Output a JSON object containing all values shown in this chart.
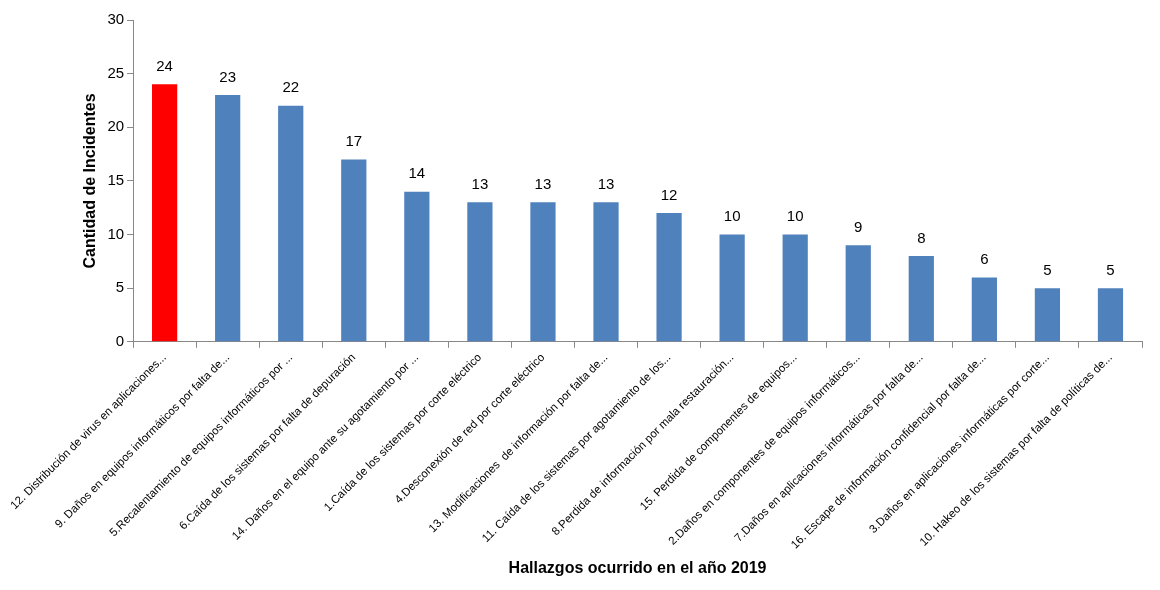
{
  "chart_data": {
    "type": "bar",
    "xlabel": "Hallazgos ocurrido en el año 2019",
    "ylabel": "Cantidad de Incidentes",
    "categories": [
      "12. Distribución de virus en aplicaciones...",
      "9. Daños en equipos informáticos por falta de...",
      "5.Recalentamiento de equipos informáticos por ...",
      "6.Caída de los sistemas por falta de depuración",
      "14. Daños en el equipo ante su agotamiento por ...",
      "1.Caída de los sistemas por corte eléctrico",
      "4.Desconexión de red por corte eléctrico",
      "13. Modificaciones  de información por falta de...",
      "11. Caída de los sistemas por agotamiento de los...",
      "8.Perdida de información por mala restauración...",
      "15. Perdida de componentes de equipos...",
      "2.Daños en componentes de equipos informáticos...",
      "7.Daños en aplicaciones informáticas por falta de...",
      "16. Escape de información confidencial por falta de...",
      "3.Daños en aplicaciones informáticas por corte...",
      "10. Hakeo de los sistemas por falta de políticas de..."
    ],
    "values": [
      24,
      23,
      22,
      17,
      14,
      13,
      13,
      13,
      12,
      10,
      10,
      9,
      8,
      6,
      5,
      5
    ],
    "colors": [
      "#ff0000",
      "#4f81bd",
      "#4f81bd",
      "#4f81bd",
      "#4f81bd",
      "#4f81bd",
      "#4f81bd",
      "#4f81bd",
      "#4f81bd",
      "#4f81bd",
      "#4f81bd",
      "#4f81bd",
      "#4f81bd",
      "#4f81bd",
      "#4f81bd",
      "#4f81bd"
    ],
    "ylim": [
      0,
      30
    ],
    "yticks": [
      0,
      5,
      10,
      15,
      20,
      25,
      30
    ],
    "grid": false,
    "legend": false,
    "data_labels": true
  }
}
